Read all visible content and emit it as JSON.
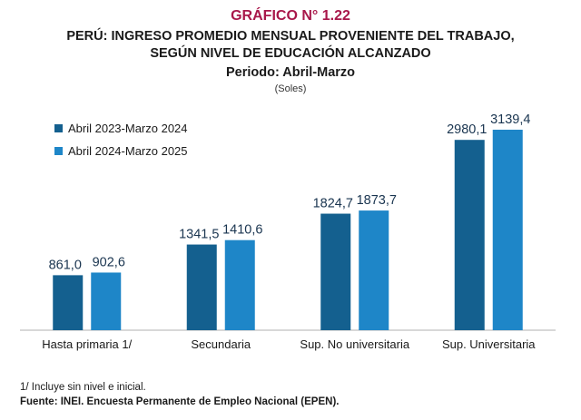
{
  "figure_label": "GRÁFICO N° 1.22",
  "title_lines": [
    "PERÚ: INGRESO PROMEDIO MENSUAL PROVENIENTE DEL TRABAJO,",
    "SEGÚN NIVEL DE EDUCACIÓN ALCANZADO"
  ],
  "period": "Periodo: Abril-Marzo",
  "units": "(Soles)",
  "chart_data": {
    "type": "bar",
    "categories": [
      "Hasta primaria 1/",
      "Secundaria",
      "Sup. No universitaria",
      "Sup. Universitaria"
    ],
    "series": [
      {
        "name": "Abril 2023-Marzo 2024",
        "color": "#14608f",
        "values": [
          861.0,
          1341.5,
          1824.7,
          2980.1
        ],
        "labels": [
          "861,0",
          "1341,5",
          "1824,7",
          "2980,1"
        ]
      },
      {
        "name": "Abril 2024-Marzo 2025",
        "color": "#1e86c8",
        "values": [
          902.6,
          1410.6,
          1873.7,
          3139.4
        ],
        "labels": [
          "902,6",
          "1410,6",
          "1873,7",
          "3139,4"
        ]
      }
    ],
    "ylim": [
      0,
      3300
    ],
    "legend_position": "top-left",
    "grid": false
  },
  "footnote": "1/ Incluye sin nivel e inicial.",
  "source": "Fuente: INEI. Encuesta Permanente de Empleo Nacional (EPEN)."
}
